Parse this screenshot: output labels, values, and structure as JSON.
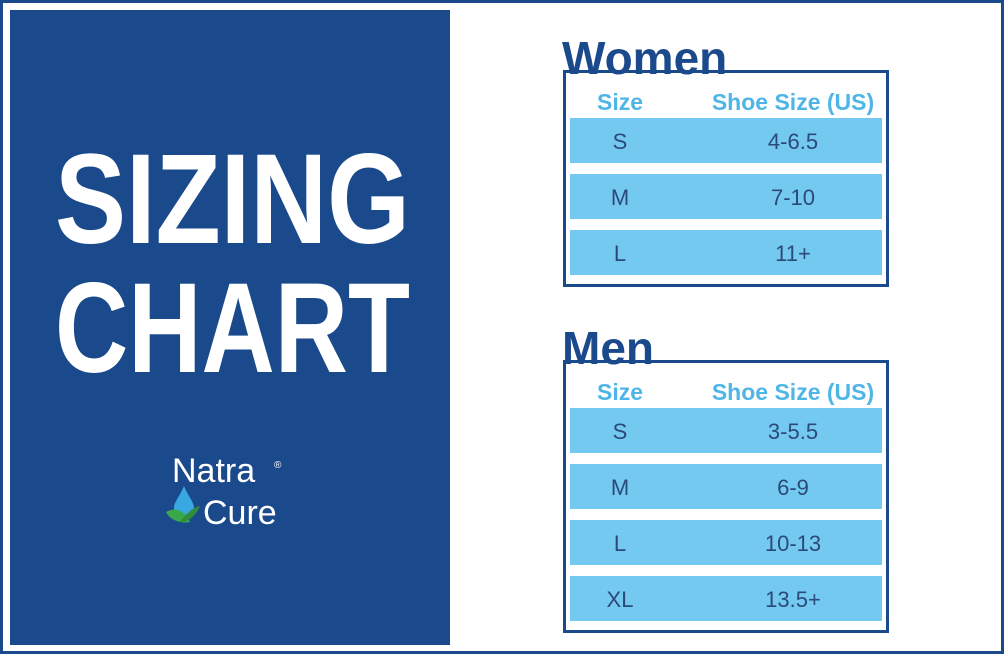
{
  "panel": {
    "title_lines": [
      "SIZING",
      "CHART"
    ],
    "logo": {
      "line1": "Natra",
      "line2": "Cure",
      "mark": "®"
    }
  },
  "tables": [
    {
      "title": "Women",
      "header": [
        "Size",
        "Shoe Size (US)"
      ],
      "rows": [
        [
          "S",
          "4-6.5"
        ],
        [
          "M",
          "7-10"
        ],
        [
          "L",
          "11+"
        ]
      ]
    },
    {
      "title": "Men",
      "header": [
        "Size",
        "Shoe Size (US)"
      ],
      "rows": [
        [
          "S",
          "3-5.5"
        ],
        [
          "M",
          "6-9"
        ],
        [
          "L",
          "10-13"
        ],
        [
          "XL",
          "13.5+"
        ]
      ]
    }
  ]
}
